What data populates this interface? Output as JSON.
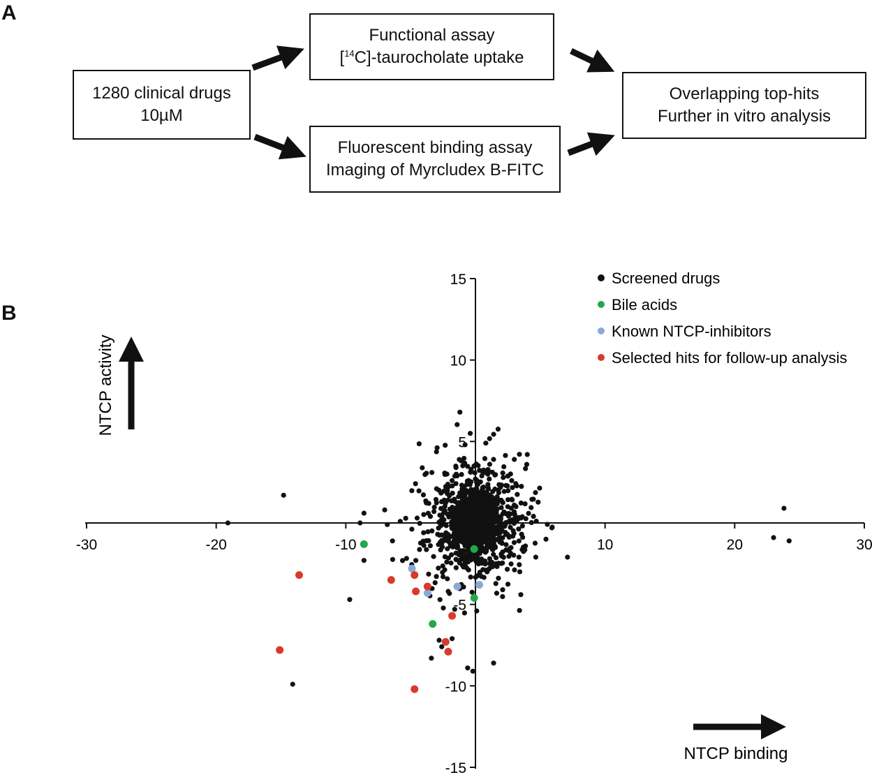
{
  "panel_a": {
    "letter": "A",
    "box_drugs": {
      "line1": "1280 clinical drugs",
      "line2": "10µM"
    },
    "box_functional": {
      "line1": "Functional assay",
      "line2_sup": "14",
      "line2_pre": "[",
      "line2_post": "C]-taurocholate uptake"
    },
    "box_fluorescent": {
      "line1": "Fluorescent binding assay",
      "line2": "Imaging of Myrcludex B-FITC"
    },
    "box_overlap": {
      "line1": "Overlapping top-hits",
      "line2": "Further in vitro analysis"
    }
  },
  "panel_b": {
    "letter": "B"
  },
  "chart_data": {
    "type": "scatter",
    "xlabel": "NTCP binding",
    "ylabel": "NTCP activity",
    "xlim": [
      -30,
      30
    ],
    "ylim": [
      -15,
      15
    ],
    "x_ticks": [
      -30,
      -20,
      -10,
      10,
      20,
      30
    ],
    "y_ticks": [
      15,
      10,
      5,
      -5,
      -10,
      -15
    ],
    "x_tick_labels": [
      "-30",
      "-20",
      "-10",
      "10",
      "20",
      "30"
    ],
    "y_tick_labels": [
      "15",
      "10",
      "5",
      "-5",
      "-10",
      "-15"
    ],
    "legend_position": "top-right",
    "legend": [
      {
        "name": "Screened drugs",
        "color": "#111111"
      },
      {
        "name": "Bile acids",
        "color": "#22a84a"
      },
      {
        "name": "Known NTCP-inhibitors",
        "color": "#8aa9d6"
      },
      {
        "name": "Selected hits for follow-up analysis",
        "color": "#d93a2b"
      }
    ],
    "series": [
      {
        "name": "Screened drugs",
        "color": "#111111",
        "points": [
          [
            -19.1,
            0.0
          ],
          [
            -14.8,
            1.7
          ],
          [
            -8.6,
            0.6
          ],
          [
            -7.0,
            0.8
          ],
          [
            -8.9,
            0.0
          ],
          [
            -6.8,
            -0.1
          ],
          [
            -6.4,
            -1.1
          ],
          [
            -4.5,
            0.3
          ],
          [
            -5.8,
            0.1
          ],
          [
            -3.6,
            1.2
          ],
          [
            -3.2,
            0.7
          ],
          [
            -4.0,
            -0.6
          ],
          [
            -1.2,
            6.8
          ],
          [
            4.0,
            4.2
          ],
          [
            3.0,
            3.9
          ],
          [
            5.9,
            -0.3
          ],
          [
            7.1,
            -2.1
          ],
          [
            3.5,
            -4.4
          ],
          [
            -9.7,
            -4.7
          ],
          [
            -8.6,
            -2.3
          ],
          [
            -4.6,
            -2.3
          ],
          [
            -14.1,
            -9.9
          ],
          [
            -3.4,
            -8.3
          ],
          [
            -2.8,
            -7.2
          ],
          [
            -0.6,
            -8.9
          ],
          [
            -0.2,
            -9.1
          ],
          [
            1.4,
            -8.6
          ],
          [
            -1.6,
            -5.3
          ],
          [
            -2.1,
            -4.2
          ],
          [
            23.8,
            0.9
          ],
          [
            23.0,
            -0.9
          ],
          [
            24.2,
            -1.1
          ],
          [
            -2.6,
            -7.6
          ],
          [
            -1.8,
            -7.1
          ],
          [
            2.1,
            -4.1
          ],
          [
            0.1,
            -5.4
          ],
          [
            -2.5,
            -3.3
          ],
          [
            -1.0,
            -2.6
          ],
          [
            1.6,
            -2.5
          ],
          [
            -0.4,
            5.5
          ],
          [
            -0.8,
            4.8
          ],
          [
            0.8,
            4.9
          ],
          [
            1.4,
            3.9
          ],
          [
            -1.5,
            3.4
          ],
          [
            -3.0,
            2.1
          ],
          [
            2.8,
            2.6
          ],
          [
            -2.2,
            3.0
          ],
          [
            1.1,
            3.6
          ]
        ]
      },
      {
        "name": "Bile acids",
        "color": "#22a84a",
        "points": [
          [
            -8.6,
            -1.3
          ],
          [
            -0.1,
            -1.6
          ],
          [
            -0.1,
            -4.6
          ],
          [
            -3.3,
            -6.2
          ]
        ]
      },
      {
        "name": "Known NTCP-inhibitors",
        "color": "#8aa9d6",
        "points": [
          [
            -4.9,
            -2.8
          ],
          [
            -3.7,
            -4.3
          ],
          [
            -1.4,
            -3.9
          ],
          [
            0.3,
            -3.8
          ]
        ]
      },
      {
        "name": "Selected hits for follow-up analysis",
        "color": "#d93a2b",
        "points": [
          [
            -13.6,
            -3.2
          ],
          [
            -6.5,
            -3.5
          ],
          [
            -4.7,
            -3.2
          ],
          [
            -4.6,
            -4.2
          ],
          [
            -3.7,
            -3.9
          ],
          [
            -1.8,
            -5.7
          ],
          [
            -2.3,
            -7.3
          ],
          [
            -2.1,
            -7.9
          ],
          [
            -15.1,
            -7.8
          ],
          [
            -4.7,
            -10.2
          ]
        ]
      }
    ],
    "cluster_note": "dense cloud of screened drugs around the origin"
  }
}
